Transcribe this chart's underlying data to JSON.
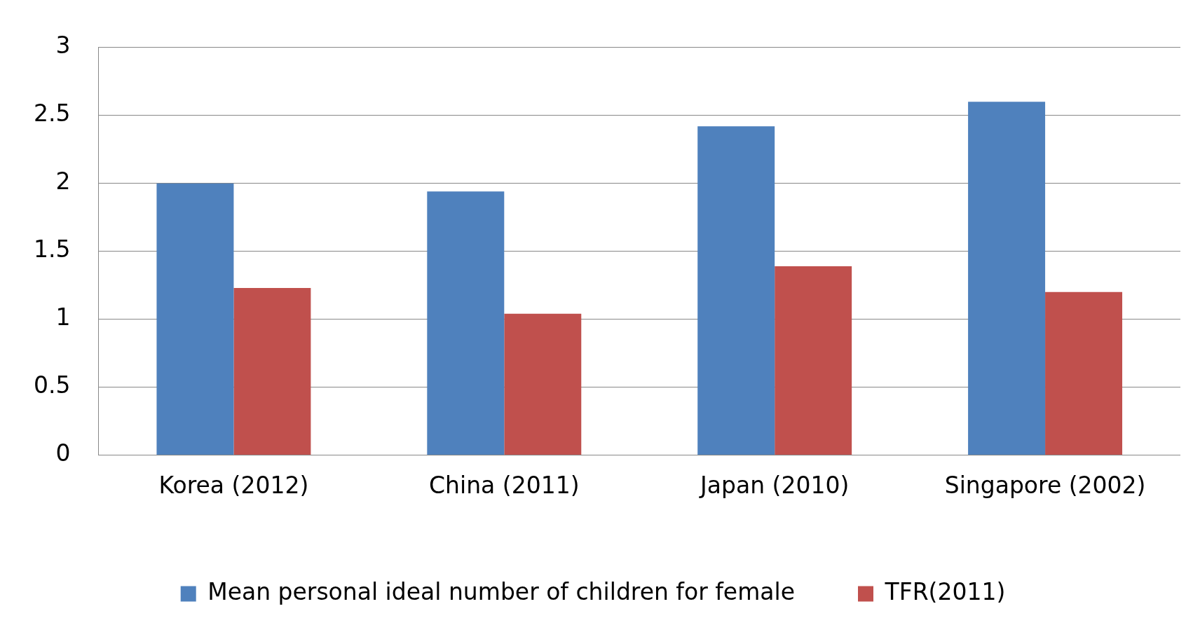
{
  "chart_data": {
    "type": "bar",
    "categories": [
      "Korea (2012)",
      "China (2011)",
      "Japan (2010)",
      "Singapore (2002)"
    ],
    "series": [
      {
        "name": "Mean personal ideal number of children for female",
        "color": "#4f81bd",
        "values": [
          2.0,
          1.94,
          2.42,
          2.6
        ]
      },
      {
        "name": "TFR(2011)",
        "color": "#c0504d",
        "values": [
          1.23,
          1.04,
          1.39,
          1.2
        ]
      }
    ],
    "ylim": [
      0,
      3
    ],
    "yticks": [
      0,
      0.5,
      1,
      1.5,
      2,
      2.5,
      3
    ],
    "grid": "y",
    "legend": "bottom"
  }
}
